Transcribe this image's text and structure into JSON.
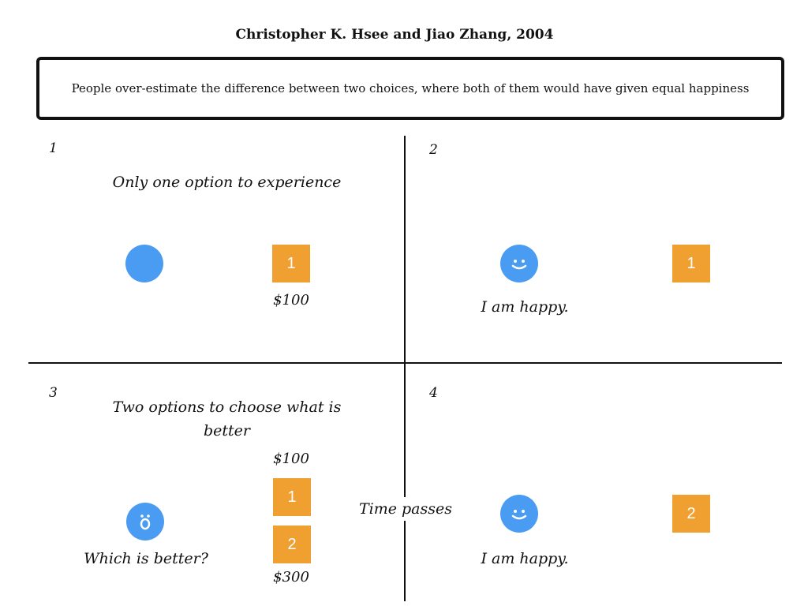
{
  "title": "Christopher K. Hsee and Jiao Zhang, 2004",
  "thesis": "People over-estimate the difference between two choices, where both of them would have given equal happiness",
  "quadrant1": {
    "number": "1",
    "caption": "Only one option to experience",
    "face": "",
    "option_label": "1",
    "price": "$100"
  },
  "quadrant2": {
    "number": "2",
    "face": "̮̈",
    "face_name": "smiley-icon",
    "caption": "I am happy.",
    "option_label": "1"
  },
  "quadrant3": {
    "number": "3",
    "caption_line1": "Two options to choose what is",
    "caption_line2": "better",
    "face": "ö",
    "face_name": "surprised-face-icon",
    "question": "Which is better?",
    "option1_label": "1",
    "option1_price": "$100",
    "option2_label": "2",
    "option2_price": "$300"
  },
  "quadrant4": {
    "number": "4",
    "face_name": "smiley-icon",
    "caption": "I am happy.",
    "option_label": "2"
  },
  "time_label": "Time passes",
  "colors": {
    "circle": "#4a9cf2",
    "square": "#f0a030",
    "line": "#111111"
  }
}
